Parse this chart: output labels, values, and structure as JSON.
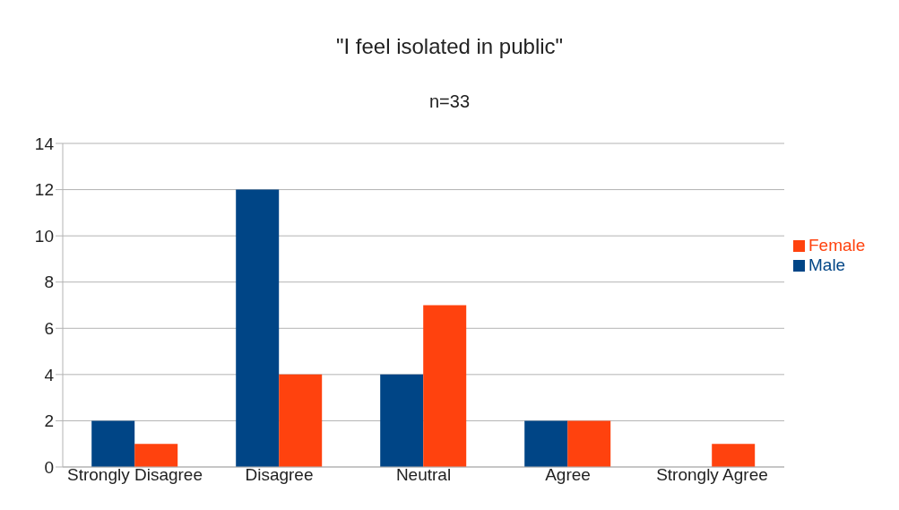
{
  "chart_data": {
    "type": "bar",
    "title": "\"I feel isolated in public\"",
    "subtitle": "n=33",
    "categories": [
      "Strongly Disagree",
      "Disagree",
      "Neutral",
      "Agree",
      "Strongly Agree"
    ],
    "series": [
      {
        "name": "Male",
        "color": "#004586",
        "values": [
          2,
          12,
          4,
          2,
          0
        ]
      },
      {
        "name": "Female",
        "color": "#ff420e",
        "values": [
          1,
          4,
          7,
          2,
          1
        ]
      }
    ],
    "ylim": [
      0,
      14
    ],
    "yticks": [
      0,
      2,
      4,
      6,
      8,
      10,
      12,
      14
    ],
    "grid": "y",
    "legend": "right"
  }
}
